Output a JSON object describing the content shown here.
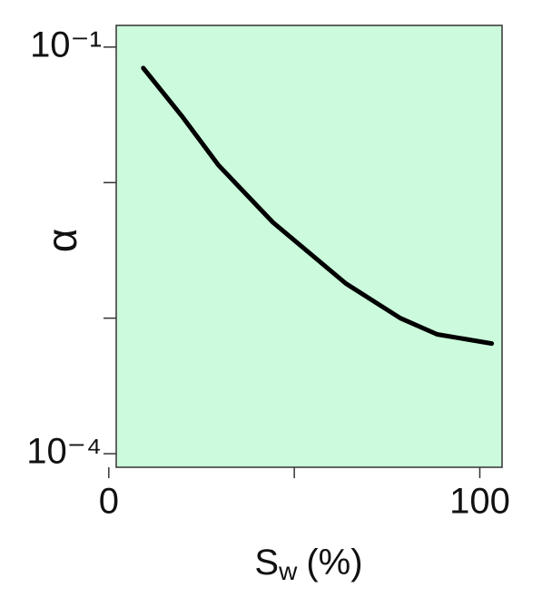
{
  "chart_data": {
    "type": "line",
    "ylabel": "α",
    "xlabel": "S",
    "xlabel_sub": "w",
    "xlabel_unit": "(%)",
    "x": [
      9.3,
      19.7,
      29.5,
      44.2,
      63.9,
      78.6,
      88.5,
      103.2
    ],
    "series": [
      {
        "color": "#000000",
        "values": [
          0.07,
          0.031,
          0.0135,
          0.0051,
          0.0018,
          0.001,
          0.00076,
          0.00065
        ]
      }
    ],
    "xlim": [
      2,
      106
    ],
    "ylim": [
      7.94e-05,
      0.1445
    ],
    "log_y": true,
    "xticks": [
      0,
      {
        "value": 50,
        "label": null
      },
      100
    ],
    "yticks": [
      {
        "value": 0.1,
        "label": "10⁻¹"
      },
      {
        "value": 0.01,
        "label": null
      },
      {
        "value": 0.001,
        "label": null
      },
      {
        "value": 0.0001,
        "label": "10⁻⁴"
      }
    ],
    "background": "#ccfadc"
  }
}
